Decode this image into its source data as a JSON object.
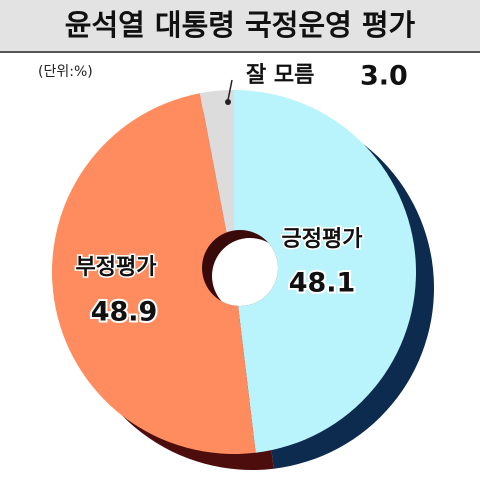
{
  "chart_data": {
    "type": "donut",
    "title": "윤석열 대통령 국정운영 평가",
    "unit": "(단위:%)",
    "categories": [
      "긍정평가",
      "부정평가",
      "잘 모름"
    ],
    "values": [
      48.1,
      48.9,
      3.0
    ],
    "value_labels": [
      "48.1",
      "48.9",
      "3.0"
    ],
    "colors": [
      "#b9f3fc",
      "#fe8c5f",
      "#dcdcdc"
    ],
    "shadow_colors": [
      "#0d2b4e",
      "#4d0d0d",
      "#9a9a9a"
    ]
  }
}
